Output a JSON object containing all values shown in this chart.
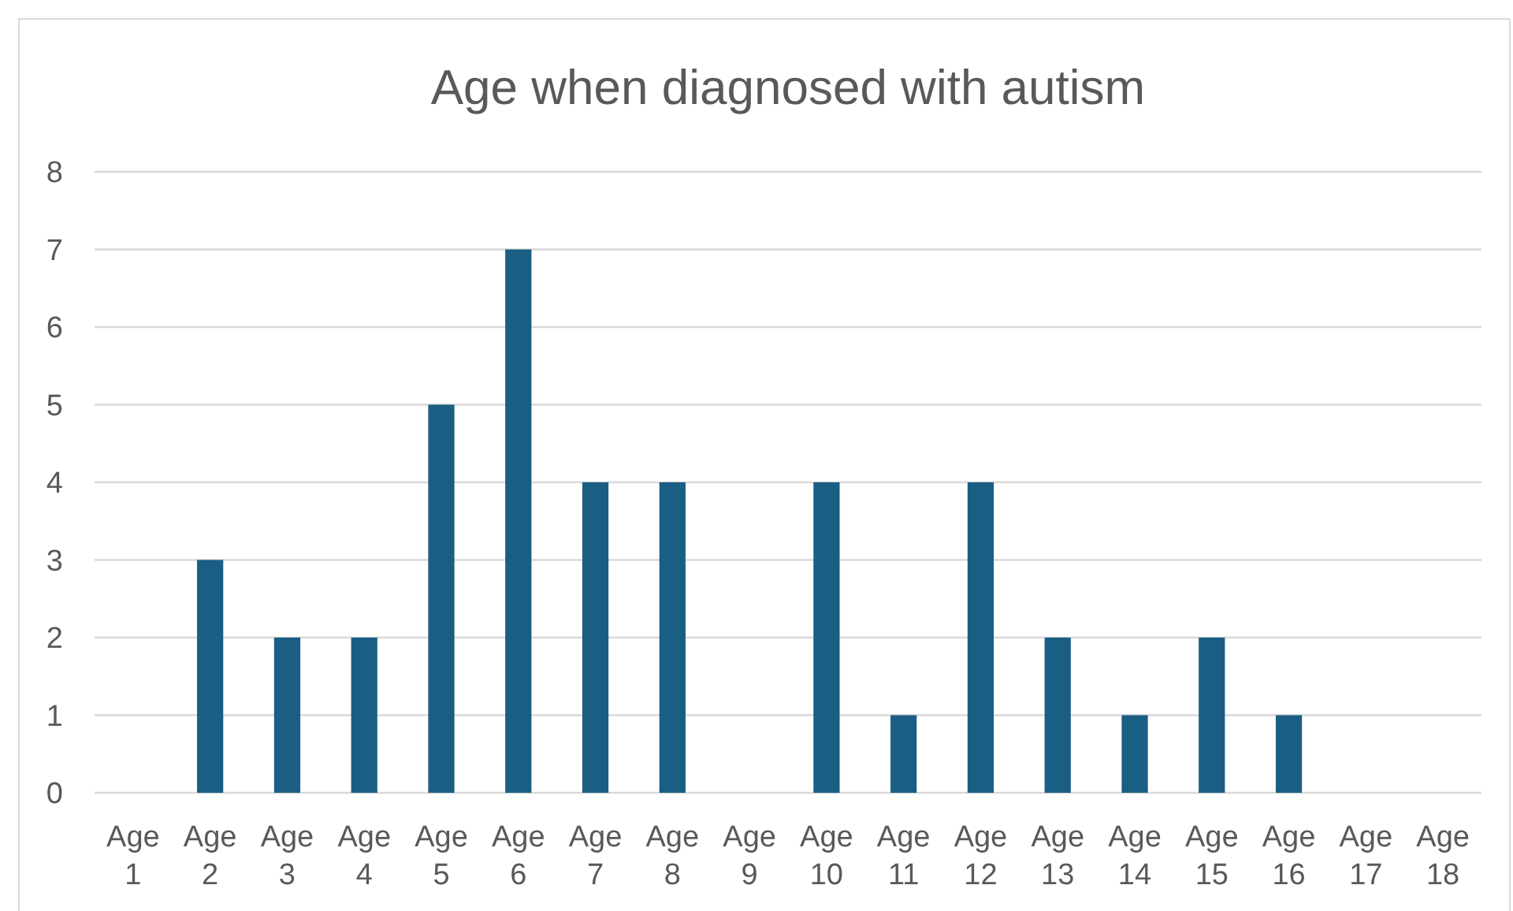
{
  "chart_data": {
    "type": "bar",
    "title": "Age when diagnosed with autism",
    "categories": [
      "Age 1",
      "Age 2",
      "Age 3",
      "Age 4",
      "Age 5",
      "Age 6",
      "Age 7",
      "Age 8",
      "Age 9",
      "Age 10",
      "Age 11",
      "Age 12",
      "Age 13",
      "Age 14",
      "Age 15",
      "Age 16",
      "Age 17",
      "Age 18"
    ],
    "values": [
      0,
      3,
      2,
      2,
      5,
      7,
      4,
      4,
      0,
      4,
      1,
      4,
      2,
      1,
      2,
      1,
      0,
      0
    ],
    "color": "#1a5e84",
    "ylim": [
      0,
      8
    ],
    "yticks": [
      0,
      1,
      2,
      3,
      4,
      5,
      6,
      7,
      8
    ],
    "grid": "y"
  }
}
